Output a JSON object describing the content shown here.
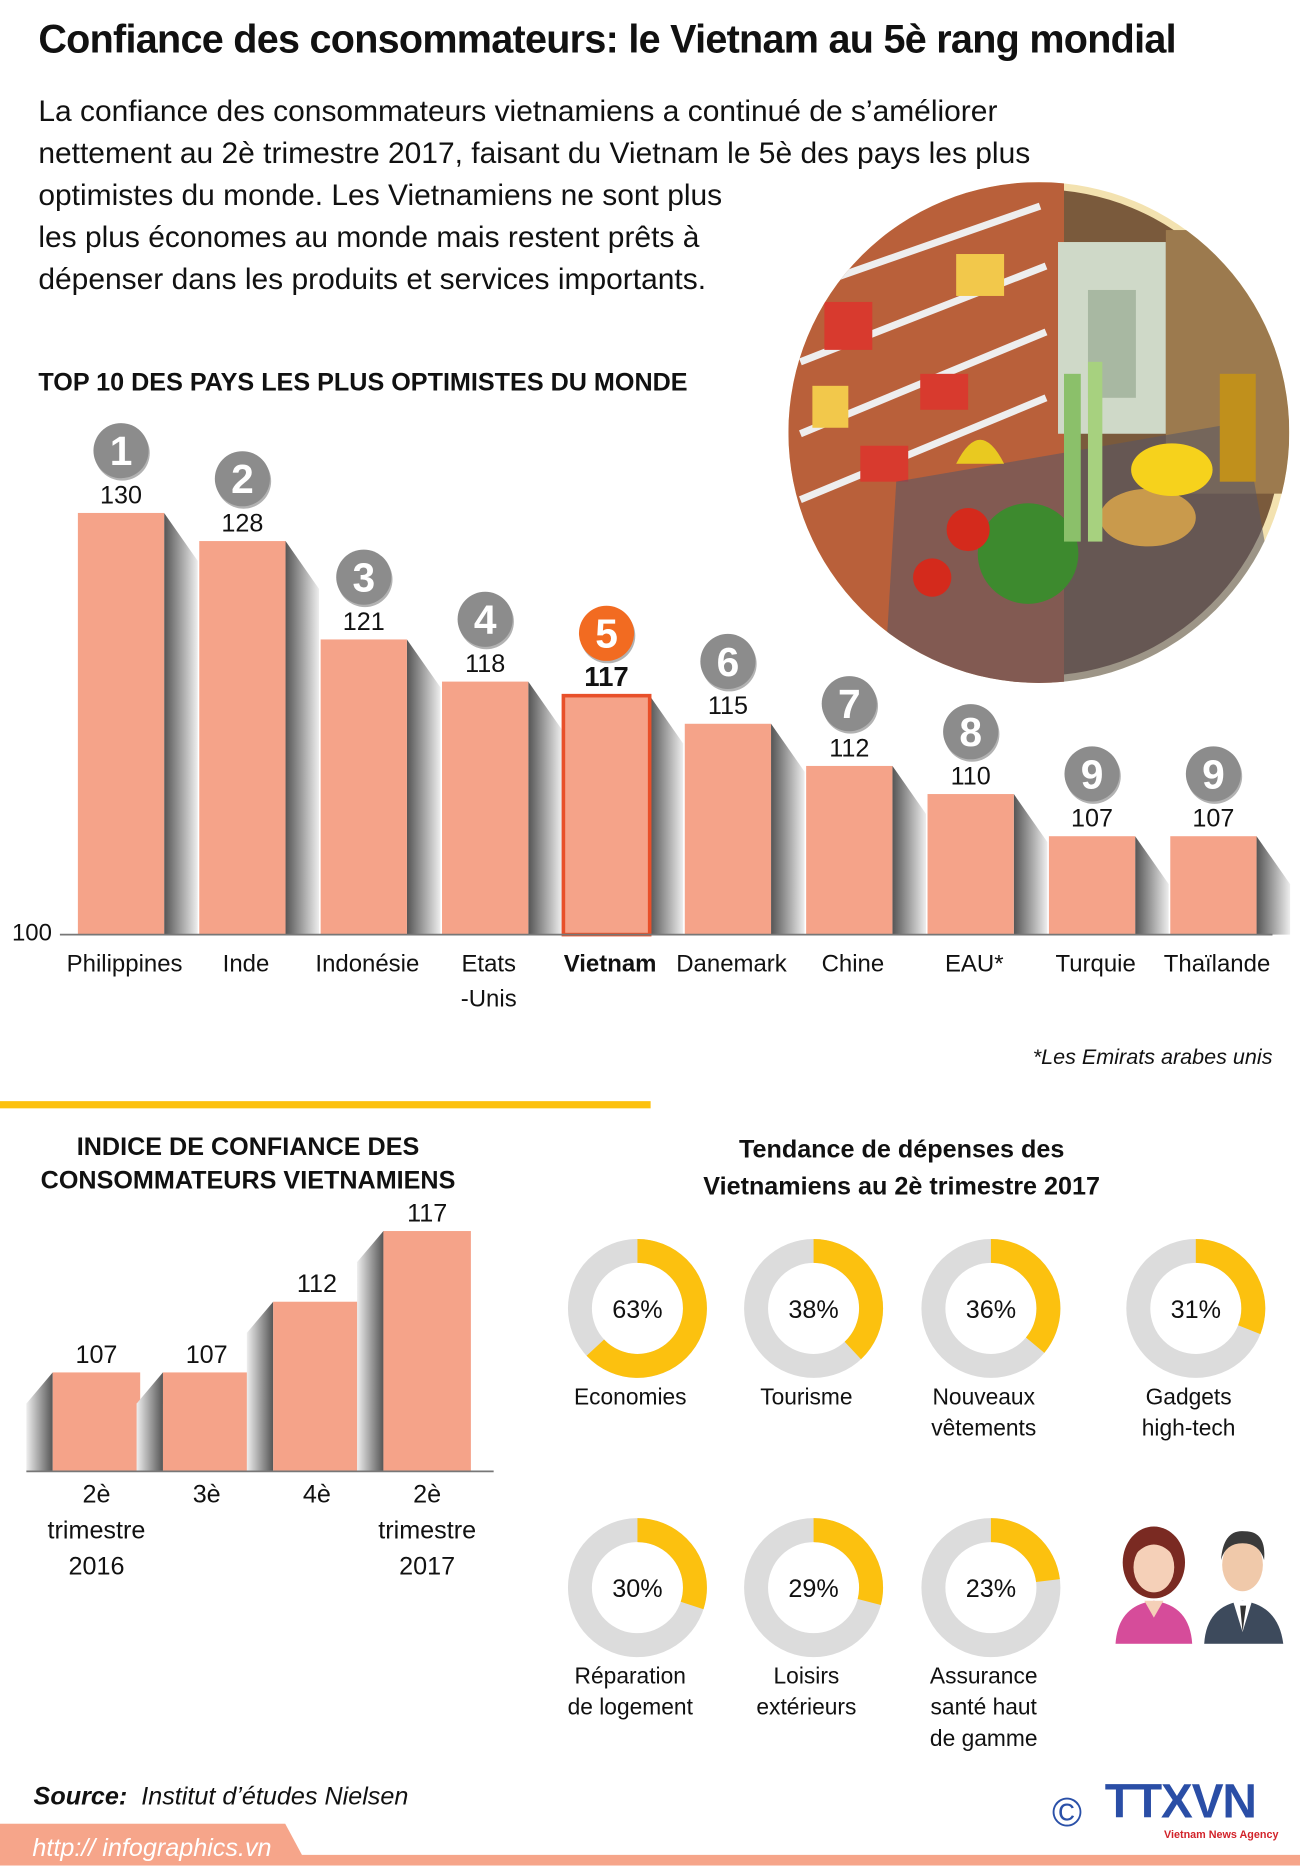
{
  "title": "Confiance des consommateurs: le Vietnam au 5è rang mondial",
  "intro_lines": [
    "La confiance des consommateurs vietnamiens a continué de s’améliorer",
    "nettement au 2è trimestre 2017, faisant du Vietnam le 5è des pays les plus",
    "optimistes du monde. Les Vietnamiens ne sont plus",
    "les plus économes au monde mais restent prêts à",
    "dépenser dans les produits et services importants."
  ],
  "colors": {
    "bar": "#f5a389",
    "highlight": "#f26b21",
    "badge": "#8c8c8c",
    "donut_fill": "#fcc10f",
    "donut_track": "#dcdcdc",
    "footer": "#f6a58a"
  },
  "chart_data": [
    {
      "type": "bar",
      "title": "TOP 10 DES PAYS LES PLUS OPTIMISTES DU MONDE",
      "categories": [
        "Philippines",
        "Inde",
        "Indonésie",
        "Etats\n-Unis",
        "Vietnam",
        "Danemark",
        "Chine",
        "EAU*",
        "Turquie",
        "Thaïlande"
      ],
      "values": [
        130,
        128,
        121,
        118,
        117,
        115,
        112,
        110,
        107,
        107
      ],
      "ranks": [
        "1",
        "2",
        "3",
        "4",
        "5",
        "6",
        "7",
        "8",
        "9",
        "9"
      ],
      "highlight": "Vietnam",
      "baseline_label": "100",
      "ylim": [
        100,
        130
      ],
      "footnote": "*Les Emirats arabes unis"
    },
    {
      "type": "bar",
      "title_lines": [
        "INDICE DE CONFIANCE DES",
        "CONSOMMATEURS VIETNAMIENS"
      ],
      "categories": [
        "2è\ntrimestre\n2016",
        "3è",
        "4è",
        "2è\ntrimestre\n2017"
      ],
      "values": [
        107,
        107,
        112,
        117
      ],
      "ylim": [
        100,
        117
      ]
    },
    {
      "type": "pie",
      "title_lines": [
        "Tendance de dépenses des",
        "Vietnamiens au 2è trimestre 2017"
      ],
      "categories": [
        "Economies",
        "Tourisme",
        "Nouveaux\nvêtements",
        "Gadgets\nhigh-tech",
        "Réparation\nde logement",
        "Loisirs\nextérieurs",
        "Assurance\nsanté haut\nde gamme"
      ],
      "values": [
        63,
        38,
        36,
        31,
        30,
        29,
        23
      ],
      "unit": "%"
    }
  ],
  "source_label": "Source:",
  "source_text": "Institut d’études Nielsen",
  "footer_url": "http:// infographics.vn",
  "logo_text": "TTXVN",
  "logo_sub": "Vietnam News Agency",
  "copyright": "©"
}
